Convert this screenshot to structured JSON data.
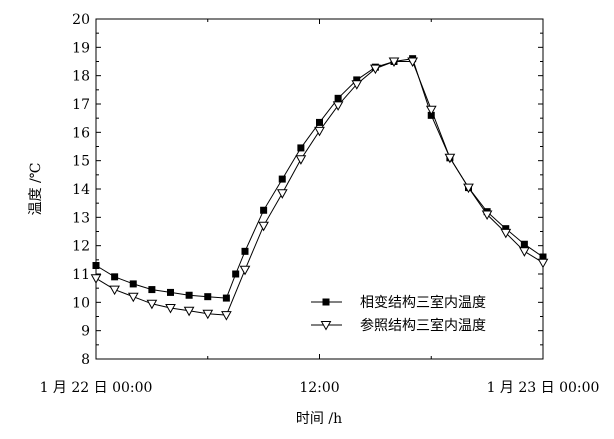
{
  "chart_data": {
    "type": "line",
    "xlabel": "时间 /h",
    "ylabel": "温度 /℃",
    "xlim": [
      0,
      24
    ],
    "ylim": [
      8,
      20
    ],
    "x_ticks": [
      {
        "value": 0,
        "label": "1 月 22 日 00:00"
      },
      {
        "value": 12,
        "label": "12:00"
      },
      {
        "value": 24,
        "label": "1 月 23 日 00:00"
      }
    ],
    "y_ticks": [
      8,
      9,
      10,
      11,
      12,
      13,
      14,
      15,
      16,
      17,
      18,
      19,
      20
    ],
    "grid": false,
    "legend_position": "bottom-right",
    "series": [
      {
        "name": "相变结构三室内温度",
        "marker": "filled-square",
        "color": "#000000",
        "x": [
          0,
          1,
          2,
          3,
          4,
          5,
          6,
          7,
          7.5,
          8,
          9,
          10,
          11,
          12,
          13,
          14,
          15,
          16,
          17,
          18,
          19,
          20,
          21,
          22,
          23,
          24
        ],
        "y": [
          11.3,
          10.9,
          10.65,
          10.45,
          10.35,
          10.25,
          10.2,
          10.15,
          11.0,
          11.8,
          13.25,
          14.35,
          15.45,
          16.35,
          17.2,
          17.85,
          18.3,
          18.5,
          18.6,
          16.6,
          15.1,
          14.05,
          13.2,
          12.6,
          12.05,
          11.6
        ]
      },
      {
        "name": "参照结构三室内温度",
        "marker": "hollow-triangle-down",
        "color": "#000000",
        "x": [
          0,
          1,
          2,
          3,
          4,
          5,
          6,
          7,
          8,
          9,
          10,
          11,
          12,
          13,
          14,
          15,
          16,
          17,
          18,
          19,
          20,
          21,
          22,
          23,
          24
        ],
        "y": [
          10.85,
          10.45,
          10.2,
          9.95,
          9.8,
          9.7,
          9.6,
          9.55,
          11.15,
          12.7,
          13.85,
          15.05,
          16.05,
          16.95,
          17.7,
          18.25,
          18.5,
          18.5,
          16.8,
          15.1,
          14.05,
          13.1,
          12.45,
          11.8,
          11.4
        ]
      }
    ]
  }
}
